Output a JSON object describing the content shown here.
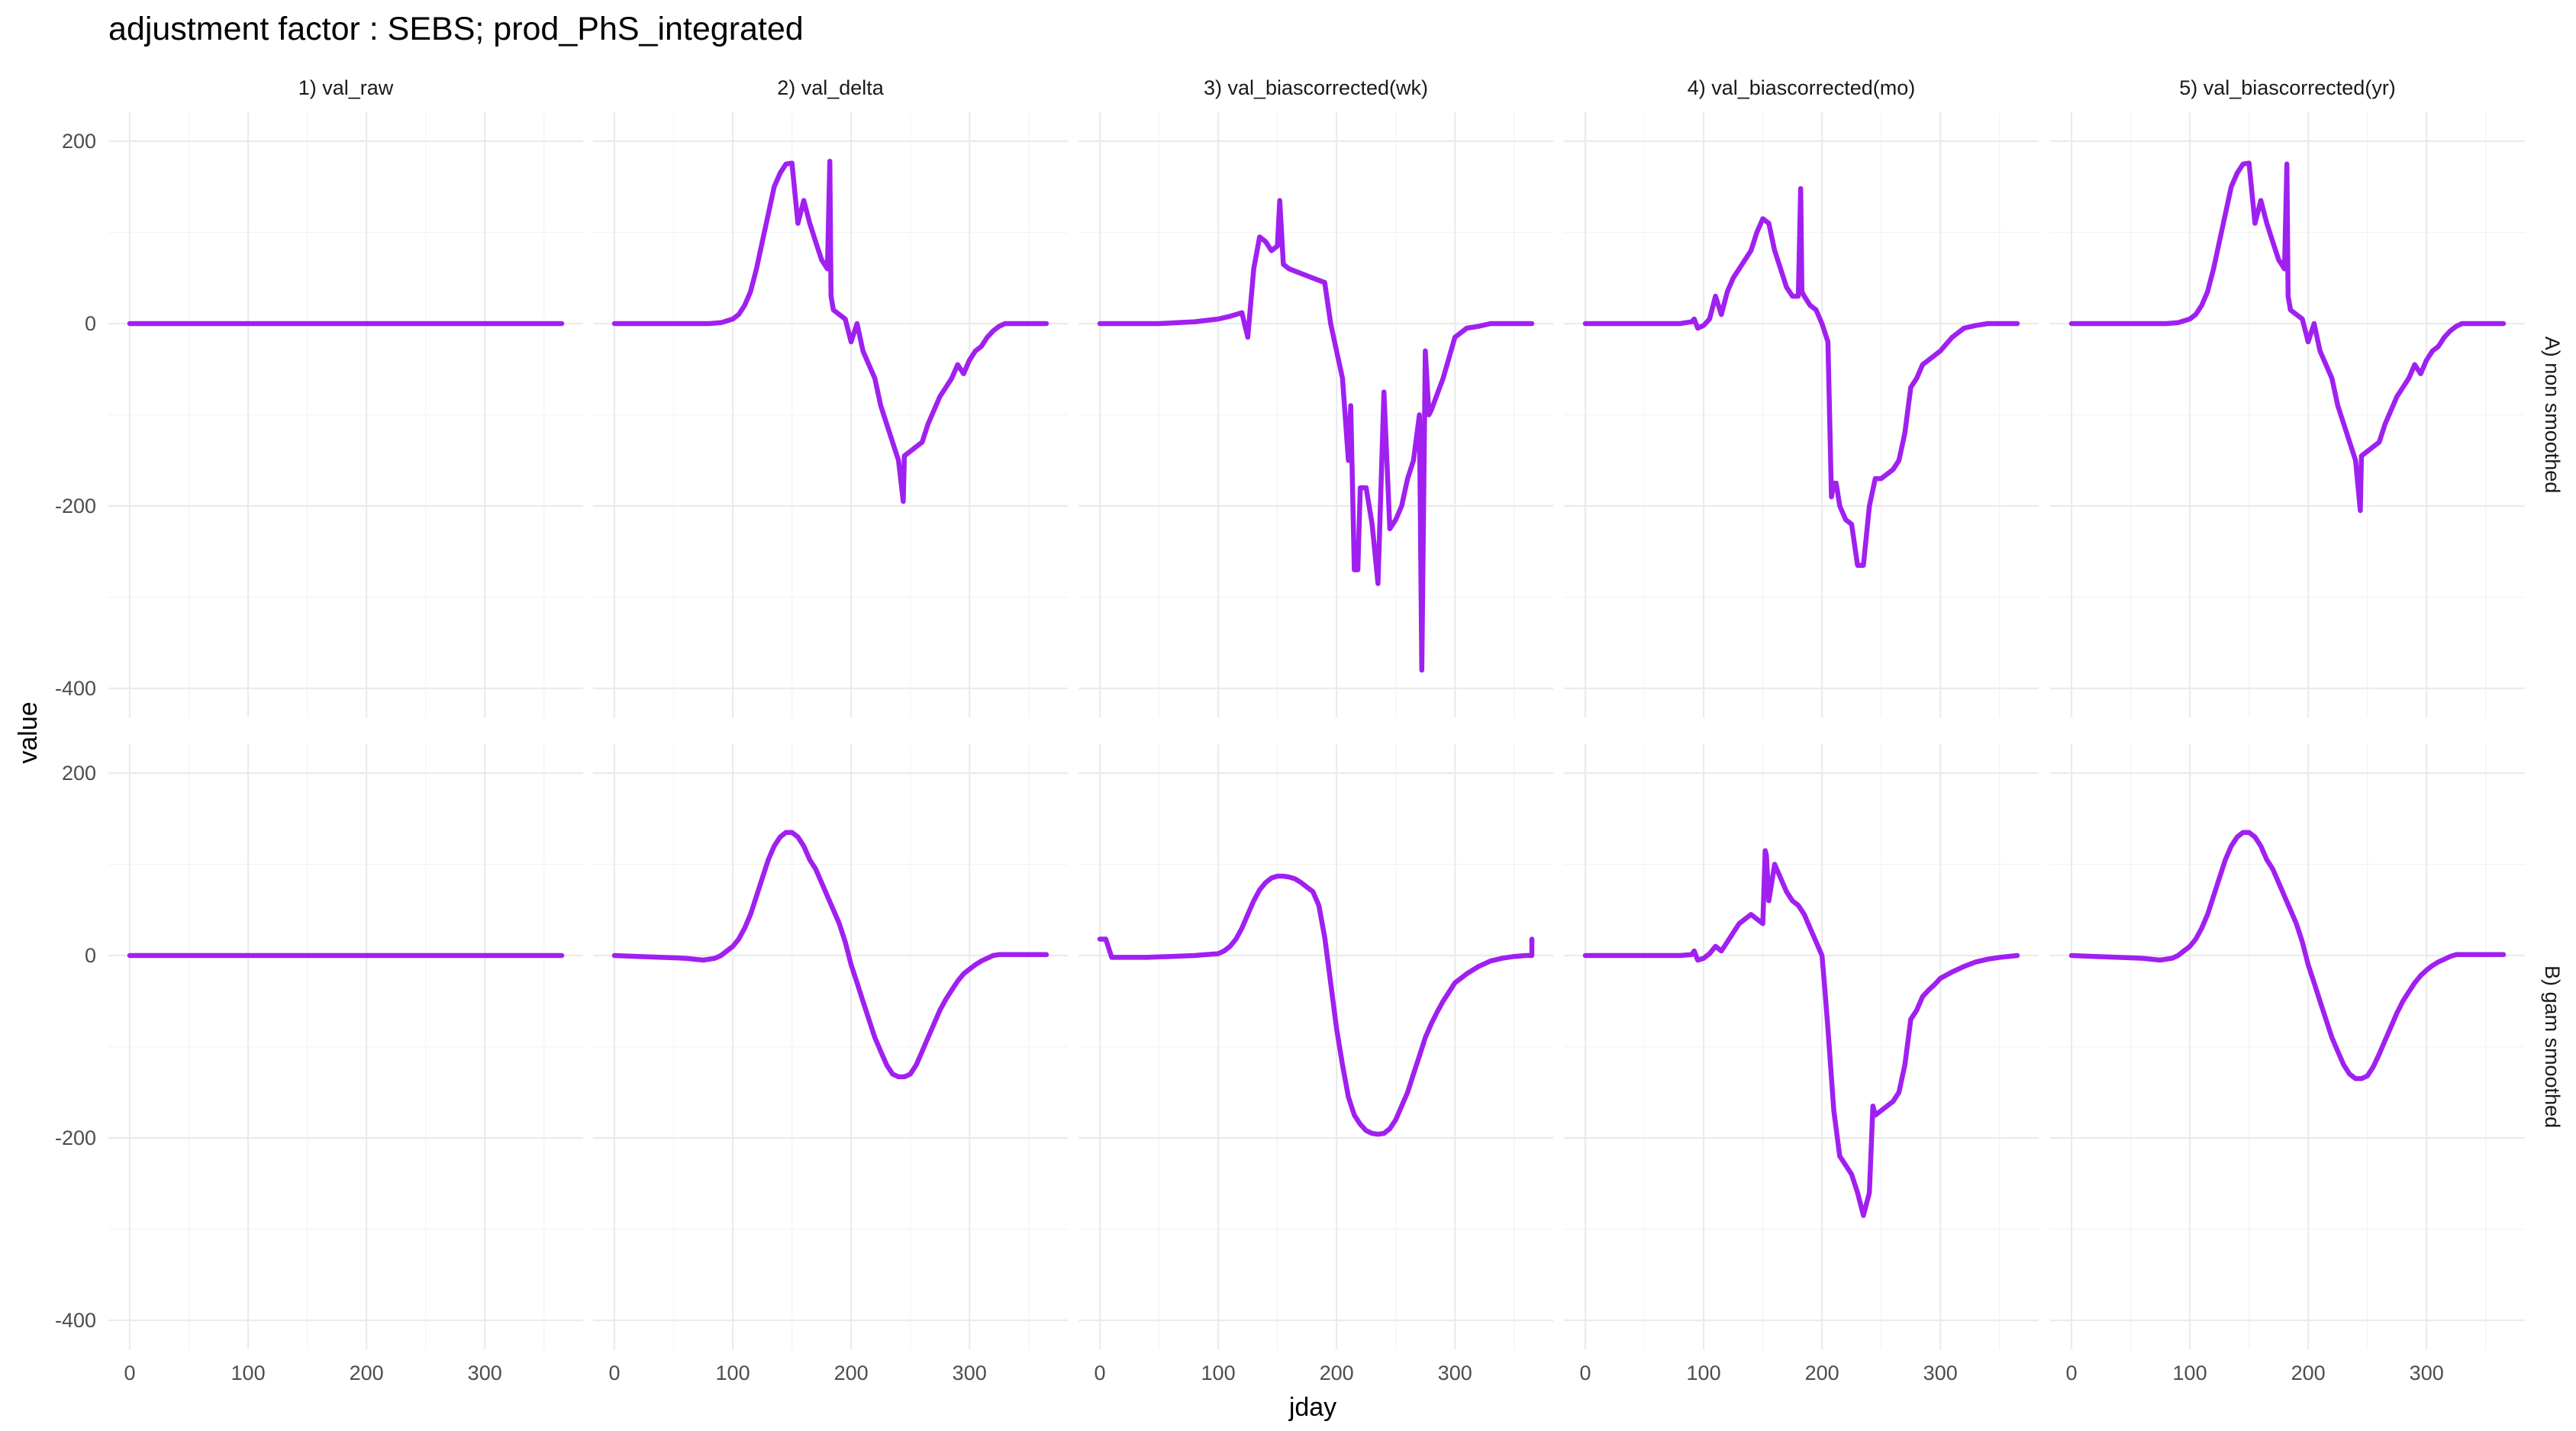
{
  "chart_data": {
    "type": "line",
    "title": "adjustment factor : SEBS; prod_PhS_integrated",
    "xlabel": "jday",
    "ylabel": "value",
    "xlim": [
      0,
      365
    ],
    "ylim": [
      -400,
      200
    ],
    "x_ticks": [
      0,
      100,
      200,
      300
    ],
    "y_ticks": [
      -400,
      -200,
      0,
      200
    ],
    "grid": true,
    "line_color": "#A020F0",
    "facet_columns": [
      "1) val_raw",
      "2) val_delta",
      "3) val_biascorrected(wk)",
      "4) val_biascorrected(mo)",
      "5) val_biascorrected(yr)"
    ],
    "facet_rows": [
      "A) non smoothed",
      "B) gam smoothed"
    ],
    "panels": [
      {
        "row": 0,
        "col": 0,
        "x": [
          0,
          365
        ],
        "y": [
          0,
          0
        ]
      },
      {
        "row": 0,
        "col": 1,
        "x": [
          0,
          80,
          90,
          100,
          105,
          110,
          115,
          120,
          125,
          130,
          135,
          140,
          145,
          150,
          155,
          160,
          165,
          170,
          175,
          180,
          182,
          183,
          185,
          190,
          195,
          200,
          205,
          210,
          215,
          220,
          225,
          230,
          235,
          240,
          244,
          245,
          250,
          255,
          260,
          265,
          270,
          275,
          280,
          285,
          290,
          295,
          300,
          305,
          310,
          315,
          320,
          325,
          330,
          340,
          365
        ],
        "y": [
          0,
          0,
          1,
          5,
          10,
          20,
          35,
          60,
          90,
          120,
          150,
          165,
          175,
          176,
          110,
          135,
          110,
          90,
          70,
          60,
          178,
          30,
          15,
          10,
          5,
          -20,
          0,
          -30,
          -45,
          -60,
          -90,
          -110,
          -130,
          -150,
          -195,
          -145,
          -140,
          -135,
          -130,
          -110,
          -95,
          -80,
          -70,
          -60,
          -45,
          -55,
          -40,
          -30,
          -25,
          -15,
          -8,
          -3,
          0,
          0,
          0
        ]
      },
      {
        "row": 0,
        "col": 2,
        "x": [
          0,
          50,
          80,
          100,
          110,
          115,
          120,
          125,
          130,
          135,
          140,
          145,
          150,
          152,
          155,
          160,
          170,
          180,
          190,
          195,
          200,
          205,
          210,
          212,
          215,
          218,
          220,
          225,
          230,
          235,
          240,
          245,
          250,
          255,
          260,
          265,
          270,
          272,
          275,
          278,
          280,
          290,
          300,
          310,
          320,
          330,
          340,
          365
        ],
        "y": [
          0,
          0,
          2,
          5,
          8,
          10,
          12,
          -15,
          60,
          95,
          90,
          80,
          85,
          135,
          65,
          60,
          55,
          50,
          45,
          0,
          -30,
          -60,
          -150,
          -90,
          -270,
          -270,
          -180,
          -180,
          -220,
          -285,
          -75,
          -225,
          -215,
          -200,
          -170,
          -150,
          -100,
          -380,
          -30,
          -100,
          -95,
          -60,
          -15,
          -5,
          -3,
          0,
          0,
          0
        ]
      },
      {
        "row": 0,
        "col": 3,
        "x": [
          0,
          80,
          90,
          92,
          95,
          100,
          105,
          110,
          115,
          120,
          125,
          130,
          135,
          140,
          145,
          150,
          155,
          160,
          165,
          170,
          175,
          180,
          182,
          183,
          185,
          190,
          195,
          200,
          205,
          208,
          210,
          212,
          215,
          220,
          225,
          230,
          235,
          240,
          245,
          250,
          255,
          260,
          265,
          270,
          275,
          280,
          285,
          290,
          295,
          300,
          310,
          320,
          330,
          340,
          365
        ],
        "y": [
          0,
          0,
          2,
          5,
          -5,
          -2,
          5,
          30,
          10,
          35,
          50,
          60,
          70,
          80,
          100,
          115,
          110,
          80,
          60,
          40,
          30,
          30,
          148,
          35,
          30,
          20,
          15,
          0,
          -20,
          -190,
          -175,
          -175,
          -200,
          -215,
          -220,
          -265,
          -265,
          -200,
          -170,
          -170,
          -165,
          -160,
          -150,
          -120,
          -70,
          -60,
          -45,
          -40,
          -35,
          -30,
          -15,
          -5,
          -2,
          0,
          0
        ]
      },
      {
        "row": 0,
        "col": 4,
        "x": [
          0,
          80,
          90,
          100,
          105,
          110,
          115,
          120,
          125,
          130,
          135,
          140,
          145,
          150,
          155,
          160,
          165,
          170,
          175,
          180,
          182,
          183,
          185,
          190,
          195,
          200,
          205,
          210,
          215,
          220,
          225,
          230,
          235,
          240,
          244,
          245,
          250,
          255,
          260,
          265,
          270,
          275,
          280,
          285,
          290,
          295,
          300,
          305,
          310,
          315,
          320,
          325,
          330,
          340,
          365
        ],
        "y": [
          0,
          0,
          1,
          5,
          10,
          20,
          35,
          60,
          90,
          120,
          150,
          165,
          175,
          176,
          110,
          135,
          110,
          90,
          70,
          60,
          175,
          30,
          15,
          10,
          5,
          -20,
          0,
          -30,
          -45,
          -60,
          -90,
          -110,
          -130,
          -150,
          -205,
          -145,
          -140,
          -135,
          -130,
          -110,
          -95,
          -80,
          -70,
          -60,
          -45,
          -55,
          -40,
          -30,
          -25,
          -15,
          -8,
          -3,
          0,
          0,
          0
        ]
      },
      {
        "row": 1,
        "col": 0,
        "x": [
          0,
          365
        ],
        "y": [
          0,
          0
        ]
      },
      {
        "row": 1,
        "col": 1,
        "x": [
          0,
          20,
          40,
          60,
          75,
          85,
          90,
          95,
          100,
          105,
          110,
          115,
          120,
          125,
          130,
          135,
          140,
          145,
          150,
          155,
          160,
          165,
          170,
          175,
          180,
          185,
          190,
          195,
          200,
          205,
          210,
          215,
          220,
          225,
          230,
          235,
          240,
          245,
          250,
          255,
          260,
          265,
          270,
          275,
          280,
          285,
          290,
          295,
          300,
          305,
          310,
          315,
          320,
          325,
          330,
          340,
          350,
          365
        ],
        "y": [
          0,
          -1,
          -2,
          -3,
          -5,
          -3,
          0,
          5,
          10,
          18,
          30,
          45,
          65,
          85,
          105,
          120,
          130,
          135,
          135,
          130,
          120,
          105,
          95,
          80,
          65,
          50,
          35,
          15,
          -10,
          -30,
          -50,
          -70,
          -90,
          -105,
          -120,
          -130,
          -133,
          -133,
          -130,
          -120,
          -105,
          -90,
          -75,
          -60,
          -48,
          -38,
          -28,
          -20,
          -15,
          -10,
          -6,
          -3,
          0,
          1,
          1,
          1,
          1,
          1
        ]
      },
      {
        "row": 1,
        "col": 2,
        "x": [
          0,
          5,
          10,
          20,
          40,
          60,
          80,
          90,
          100,
          105,
          110,
          115,
          120,
          125,
          130,
          135,
          140,
          145,
          150,
          155,
          160,
          165,
          170,
          175,
          180,
          185,
          190,
          195,
          200,
          205,
          210,
          215,
          220,
          225,
          230,
          235,
          240,
          245,
          250,
          255,
          260,
          265,
          270,
          275,
          280,
          285,
          290,
          295,
          300,
          310,
          320,
          330,
          340,
          350,
          360,
          365,
          365
        ],
        "y": [
          18,
          18,
          -2,
          -2,
          -2,
          -1,
          0,
          1,
          2,
          5,
          10,
          18,
          30,
          45,
          60,
          72,
          80,
          85,
          87,
          87,
          86,
          84,
          80,
          75,
          70,
          55,
          20,
          -30,
          -80,
          -120,
          -155,
          -175,
          -185,
          -192,
          -195,
          -196,
          -195,
          -190,
          -180,
          -165,
          -150,
          -130,
          -110,
          -90,
          -75,
          -62,
          -50,
          -40,
          -30,
          -20,
          -12,
          -6,
          -3,
          -1,
          0,
          0,
          18
        ]
      },
      {
        "row": 1,
        "col": 3,
        "x": [
          0,
          80,
          90,
          92,
          95,
          100,
          105,
          110,
          115,
          120,
          125,
          130,
          135,
          140,
          145,
          150,
          152,
          153,
          155,
          160,
          165,
          170,
          175,
          180,
          185,
          190,
          195,
          200,
          202,
          205,
          210,
          212,
          215,
          220,
          225,
          230,
          235,
          240,
          243,
          245,
          250,
          255,
          260,
          265,
          270,
          275,
          280,
          285,
          290,
          295,
          300,
          310,
          320,
          330,
          340,
          350,
          365
        ],
        "y": [
          0,
          0,
          1,
          5,
          -5,
          -3,
          2,
          10,
          5,
          15,
          25,
          35,
          40,
          45,
          40,
          35,
          115,
          110,
          60,
          100,
          85,
          70,
          60,
          55,
          45,
          30,
          15,
          0,
          -30,
          -80,
          -170,
          -190,
          -220,
          -230,
          -240,
          -260,
          -285,
          -260,
          -165,
          -175,
          -170,
          -165,
          -160,
          -150,
          -120,
          -70,
          -60,
          -45,
          -38,
          -32,
          -25,
          -18,
          -12,
          -7,
          -4,
          -2,
          0
        ]
      },
      {
        "row": 1,
        "col": 4,
        "x": [
          0,
          20,
          40,
          60,
          75,
          85,
          90,
          95,
          100,
          105,
          110,
          115,
          120,
          125,
          130,
          135,
          140,
          145,
          150,
          155,
          160,
          165,
          170,
          175,
          180,
          185,
          190,
          195,
          200,
          205,
          210,
          215,
          220,
          225,
          230,
          235,
          240,
          245,
          250,
          255,
          260,
          265,
          270,
          275,
          280,
          285,
          290,
          295,
          300,
          305,
          310,
          315,
          320,
          325,
          330,
          340,
          350,
          365
        ],
        "y": [
          0,
          -1,
          -2,
          -3,
          -5,
          -3,
          0,
          5,
          10,
          18,
          30,
          45,
          65,
          85,
          105,
          120,
          130,
          135,
          135,
          130,
          120,
          105,
          95,
          80,
          65,
          50,
          35,
          15,
          -10,
          -30,
          -50,
          -70,
          -90,
          -105,
          -120,
          -130,
          -135,
          -135,
          -132,
          -122,
          -108,
          -93,
          -78,
          -63,
          -50,
          -40,
          -30,
          -22,
          -16,
          -11,
          -7,
          -4,
          -1,
          1,
          1,
          1,
          1,
          1
        ]
      }
    ]
  }
}
